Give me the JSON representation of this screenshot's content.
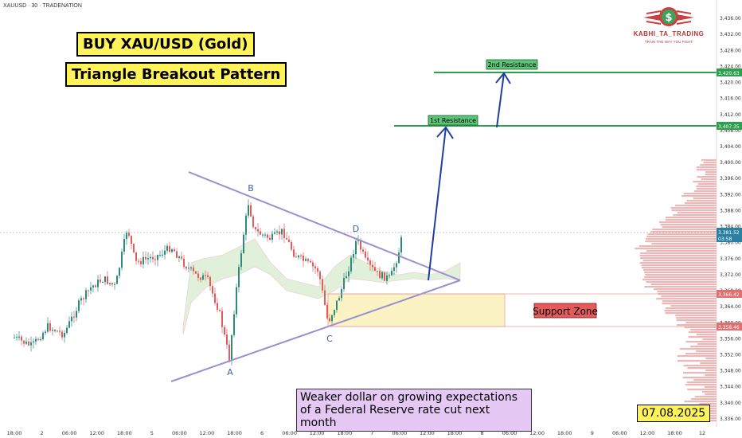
{
  "header": {
    "symbol_line": "XAUUSD · 30 · TRADENATION"
  },
  "logo": {
    "name": "KABHI_TA_TRADING",
    "tagline": "TRAIN THE WAY YOU FIGHT"
  },
  "annotations": {
    "title": "BUY XAU/USD (Gold)",
    "subtitle": "Triangle Breakout Pattern",
    "news": "Weaker dollar on growing expectations of a Federal Reserve rate cut next month",
    "date": "07.08.2025",
    "support_label": "Support Zone",
    "res1_label": "1st Resistance",
    "res2_label": "2nd Resistance",
    "points": {
      "A": "A",
      "B": "B",
      "C": "C",
      "D": "D"
    }
  },
  "colors": {
    "support_fill": "#fbf3c4",
    "resistance": "#2e9e4f",
    "triangle": "#9a8fd0",
    "arrow": "#1f3f9e",
    "bull": "#2c8a7e",
    "bear": "#e35b5b"
  },
  "chart_data": {
    "type": "candlestick",
    "symbol": "XAUUSD",
    "timeframe": "30",
    "ylim": [
      3334,
      3438
    ],
    "y_ticks": [
      "3,436.00",
      "3,432.00",
      "3,428.00",
      "3,424.00",
      "3,420.00",
      "3,416.00",
      "3,412.00",
      "3,408.00",
      "3,404.00",
      "3,400.00",
      "3,396.00",
      "3,392.00",
      "3,388.00",
      "3,384.00",
      "3,380.00",
      "3,376.00",
      "3,372.00",
      "3,368.00",
      "3,364.00",
      "3,360.00",
      "3,356.00",
      "3,352.00",
      "3,348.00",
      "3,344.00",
      "3,340.00",
      "3,336.00"
    ],
    "x_ticks": [
      "18:00",
      "2",
      "06:00",
      "12:00",
      "18:00",
      "5",
      "06:00",
      "12:00",
      "18:00",
      "6",
      "06:00",
      "12:00",
      "18:00",
      "7",
      "06:00",
      "12:00",
      "18:00",
      "8",
      "06:00",
      "12:00",
      "18:00",
      "9",
      "06:00",
      "12:00",
      "18:00",
      "12"
    ],
    "price_labels": [
      {
        "text": "3,420.63",
        "value": 3420.63
      },
      {
        "text": "3,407.35",
        "value": 3407.35
      },
      {
        "text": "3,381.52",
        "value": 3381.52
      },
      {
        "text": "03:58",
        "value": 3379.4
      },
      {
        "text": "3,366.42",
        "value": 3366.42
      },
      {
        "text": "3,358.46",
        "value": 3358.46
      }
    ],
    "levels": {
      "resistance_1": 3407.35,
      "resistance_2": 3420.63,
      "support_top": 3366.42,
      "support_bottom": 3358.46,
      "current": 3381.52
    },
    "pivots": {
      "A": 3350,
      "B": 3390,
      "C": 3358,
      "D": 3381
    }
  }
}
